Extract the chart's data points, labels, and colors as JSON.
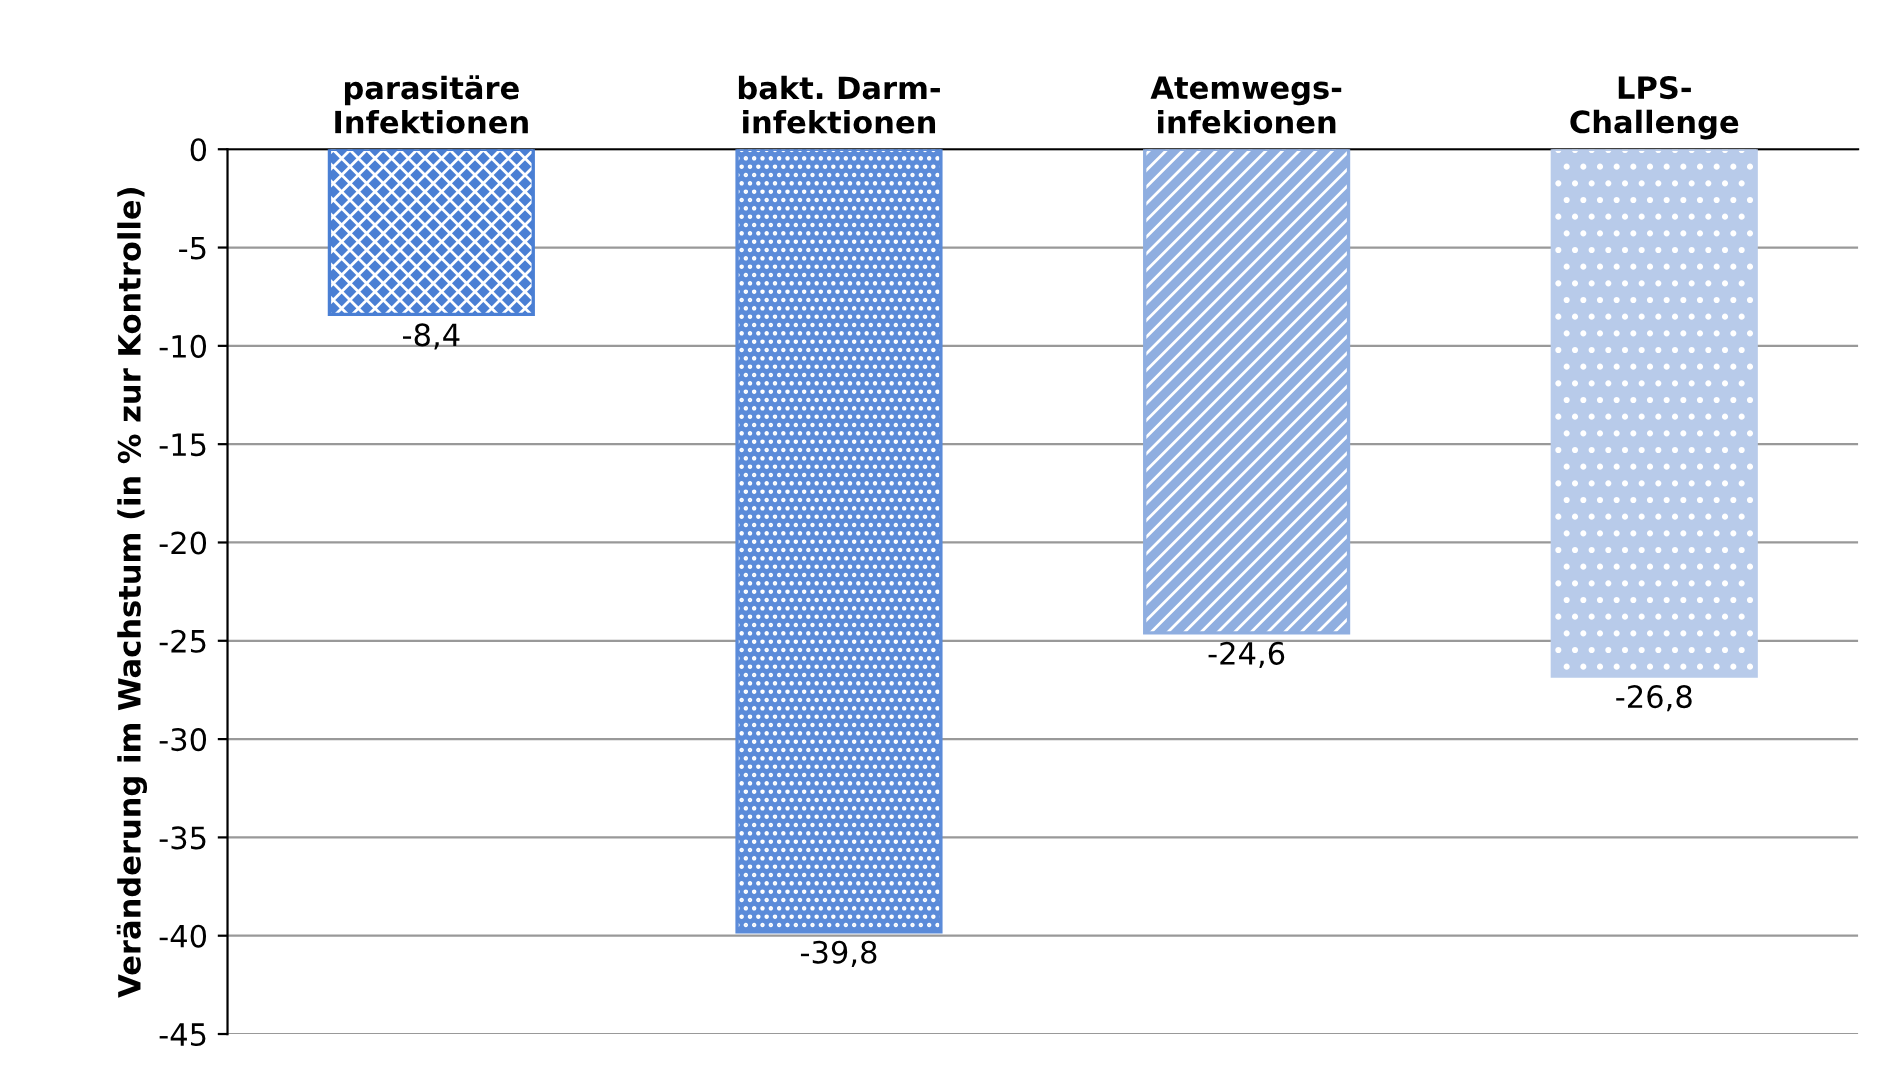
{
  "chart_data": {
    "type": "bar",
    "ylabel": "Veränderung im Wachstum (in % zur Kontrolle)",
    "categories": [
      "parasitäre\nInfektionen",
      "bakt. Darm-\ninfektionen",
      "Atemwegs-\ninfekionen",
      "LPS-\nChallenge"
    ],
    "values": [
      -8.4,
      -39.8,
      -24.6,
      -26.8
    ],
    "value_labels": [
      "-8,4",
      "-39,8",
      "-24,6",
      "-26,8"
    ],
    "colors": [
      "#4a7fd4",
      "#5b8bd9",
      "#8faee0",
      "#b8cbea"
    ],
    "ylim": [
      -45,
      0
    ],
    "yticks": [
      0,
      -5,
      -10,
      -15,
      -20,
      -25,
      -30,
      -35,
      -40,
      -45
    ],
    "grid": "y"
  }
}
